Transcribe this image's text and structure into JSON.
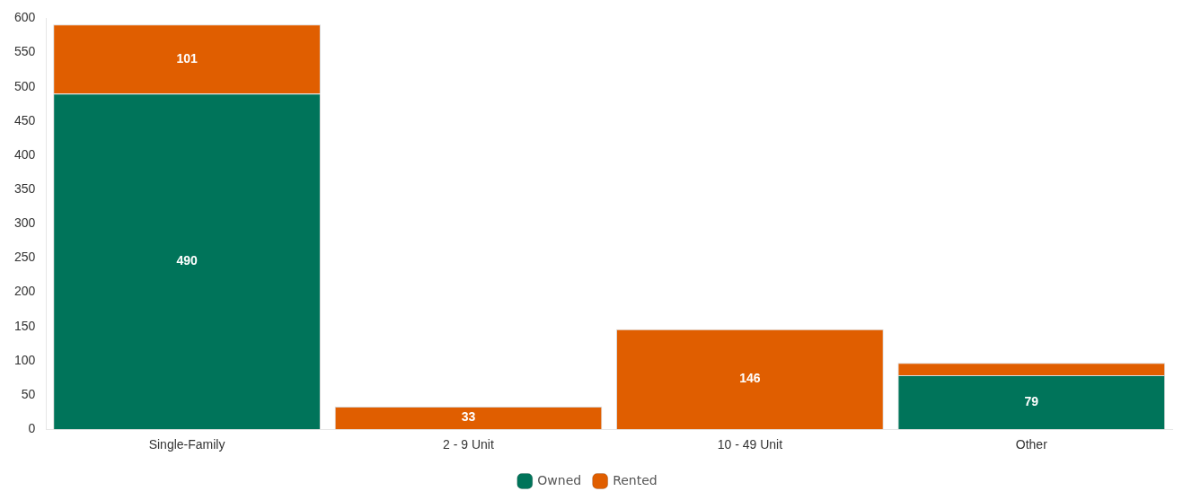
{
  "chart_data": {
    "type": "bar",
    "stacked": true,
    "categories": [
      "Single-Family",
      "2 - 9 Unit",
      "10 - 49 Unit",
      "Other"
    ],
    "series": [
      {
        "name": "Owned",
        "color": "#00745a",
        "values": [
          490,
          null,
          null,
          79
        ],
        "value_labels": [
          "490",
          null,
          null,
          "79"
        ]
      },
      {
        "name": "Rented",
        "color": "#e05e00",
        "values": [
          101,
          33,
          146,
          18
        ],
        "value_labels": [
          "101",
          "33",
          "146",
          null
        ]
      }
    ],
    "ylim": [
      0,
      600
    ],
    "yticks": [
      0,
      50,
      100,
      150,
      200,
      250,
      300,
      350,
      400,
      450,
      500,
      550,
      600
    ],
    "grid": false,
    "legend": "bottom"
  }
}
